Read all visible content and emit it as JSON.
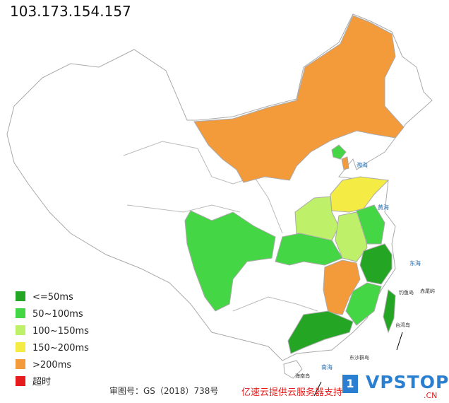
{
  "title": "103.173.154.157",
  "legend": [
    {
      "label": "<=50ms",
      "color": "#24a524"
    },
    {
      "label": "50~100ms",
      "color": "#44d644"
    },
    {
      "label": "100~150ms",
      "color": "#bff06a"
    },
    {
      "label": "150~200ms",
      "color": "#f4ec44"
    },
    {
      "label": ">200ms",
      "color": "#f39a3a"
    },
    {
      "label": "超时",
      "color": "#e41c1c"
    }
  ],
  "footer": {
    "approval": "审图号：GS（2018）738号",
    "sponsor": "亿速云提供云服务器支持"
  },
  "watermark": {
    "badge": "1",
    "brand": "VPSTOP",
    "suffix": ".CN"
  },
  "map_labels": [
    "渤海",
    "黄海",
    "东海",
    "钓鱼岛",
    "赤尾屿",
    "台湾岛",
    "东沙群岛",
    "海南岛",
    "南海"
  ]
}
